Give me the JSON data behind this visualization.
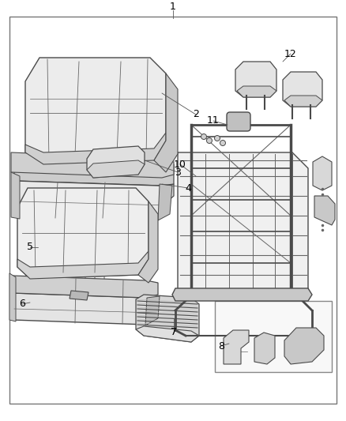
{
  "bg_color": "#ffffff",
  "border_color": "#888888",
  "lc": "#4a4a4a",
  "lc2": "#666666",
  "fc_light": "#e8e8e8",
  "fc_mid": "#d8d8d8",
  "fc_dark": "#c0c0c0",
  "label_fs": 9,
  "figsize": [
    4.38,
    5.33
  ],
  "dpi": 100
}
